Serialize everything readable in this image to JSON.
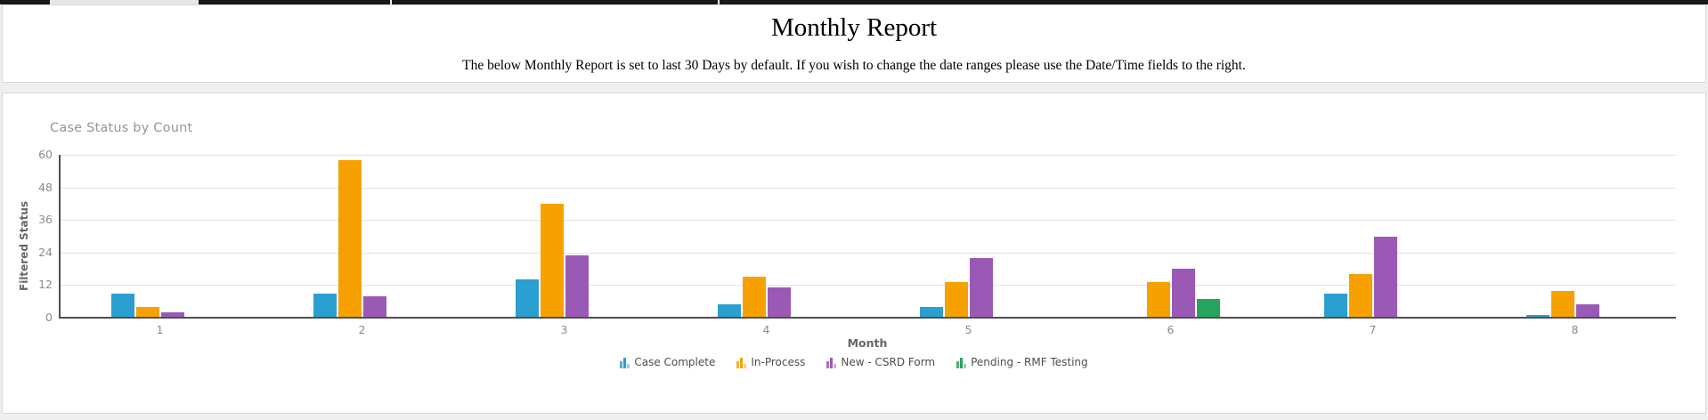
{
  "header": {
    "title": "Monthly Report",
    "subtitle": "The below Monthly Report is set to last 30 Days by default. If you wish to change the date ranges please use the Date/Time fields to the right."
  },
  "chart_data": {
    "type": "bar",
    "title": "Case Status by Count",
    "xlabel": "Month",
    "ylabel": "Filtered Status",
    "ylim": [
      0,
      60
    ],
    "y_ticks": [
      0,
      12,
      24,
      36,
      48,
      60
    ],
    "grid": true,
    "legend_position": "bottom",
    "categories": [
      "1",
      "2",
      "3",
      "4",
      "5",
      "6",
      "7",
      "8"
    ],
    "series": [
      {
        "name": "Case Complete",
        "color": "#2b9fd0",
        "values": [
          9,
          9,
          14,
          5,
          4,
          null,
          9,
          1
        ]
      },
      {
        "name": "In-Process",
        "color": "#f7a100",
        "values": [
          4,
          58,
          42,
          15,
          13,
          13,
          16,
          10
        ]
      },
      {
        "name": "New - CSRD Form",
        "color": "#9b59b6",
        "values": [
          2,
          8,
          23,
          11,
          22,
          18,
          30,
          5
        ]
      },
      {
        "name": "Pending - RMF Testing",
        "color": "#25a55b",
        "values": [
          null,
          null,
          null,
          null,
          null,
          7,
          null,
          null
        ]
      }
    ]
  },
  "theme": {
    "panel_border": "#d8d8d8",
    "page_background": "#efefef",
    "axis_line": "#4f4f4f",
    "gridline": "#e3e3e3",
    "tick_label": "#8c8c8c"
  }
}
